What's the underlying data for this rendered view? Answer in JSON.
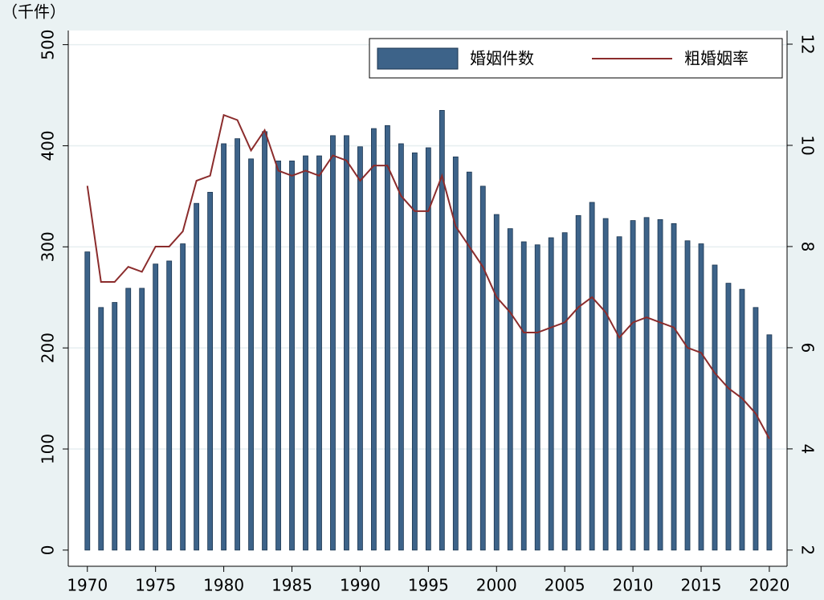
{
  "chart_data": {
    "type": "bar_line",
    "y_label": "（千件）",
    "x": [
      1970,
      1971,
      1972,
      1973,
      1974,
      1975,
      1976,
      1977,
      1978,
      1979,
      1980,
      1981,
      1982,
      1983,
      1984,
      1985,
      1986,
      1987,
      1988,
      1989,
      1990,
      1991,
      1992,
      1993,
      1994,
      1995,
      1996,
      1997,
      1998,
      1999,
      2000,
      2001,
      2002,
      2003,
      2004,
      2005,
      2006,
      2007,
      2008,
      2009,
      2010,
      2011,
      2012,
      2013,
      2014,
      2015,
      2016,
      2017,
      2018,
      2019,
      2020
    ],
    "series": [
      {
        "name": "婚姻件数",
        "type": "bar",
        "color": "#3d6389",
        "axis": "y",
        "values": [
          295,
          240,
          245,
          259,
          259,
          283,
          286,
          303,
          343,
          354,
          402,
          407,
          387,
          414,
          385,
          385,
          390,
          390,
          410,
          410,
          399,
          417,
          420,
          402,
          393,
          398,
          435,
          389,
          374,
          360,
          332,
          318,
          305,
          302,
          309,
          314,
          331,
          344,
          328,
          310,
          326,
          329,
          327,
          323,
          306,
          303,
          282,
          264,
          258,
          240,
          213
        ]
      },
      {
        "name": "粗婚姻率",
        "type": "line",
        "color": "#8b2c2c",
        "axis": "y2",
        "values": [
          9.2,
          7.3,
          7.3,
          7.6,
          7.5,
          8.0,
          8.0,
          8.3,
          9.3,
          9.4,
          10.6,
          10.5,
          9.9,
          10.3,
          9.5,
          9.4,
          9.5,
          9.4,
          9.8,
          9.7,
          9.3,
          9.6,
          9.6,
          9.0,
          8.7,
          8.7,
          9.4,
          8.4,
          8.0,
          7.6,
          7.0,
          6.7,
          6.3,
          6.3,
          6.4,
          6.5,
          6.8,
          7.0,
          6.7,
          6.2,
          6.5,
          6.6,
          6.5,
          6.4,
          6.0,
          5.9,
          5.5,
          5.2,
          5.0,
          4.7,
          4.2
        ]
      }
    ],
    "xlim": [
      1968.6,
      2021.3
    ],
    "xticks": [
      1970,
      1975,
      1980,
      1985,
      1990,
      1995,
      2000,
      2005,
      2010,
      2015,
      2020
    ],
    "ylim": [
      -16,
      514
    ],
    "yticks": [
      0,
      100,
      200,
      300,
      400,
      500
    ],
    "y2lim": [
      1.68,
      12.27
    ],
    "y2ticks": [
      2,
      4,
      6,
      8,
      10,
      12
    ],
    "grid": true,
    "legend": "top-right"
  }
}
